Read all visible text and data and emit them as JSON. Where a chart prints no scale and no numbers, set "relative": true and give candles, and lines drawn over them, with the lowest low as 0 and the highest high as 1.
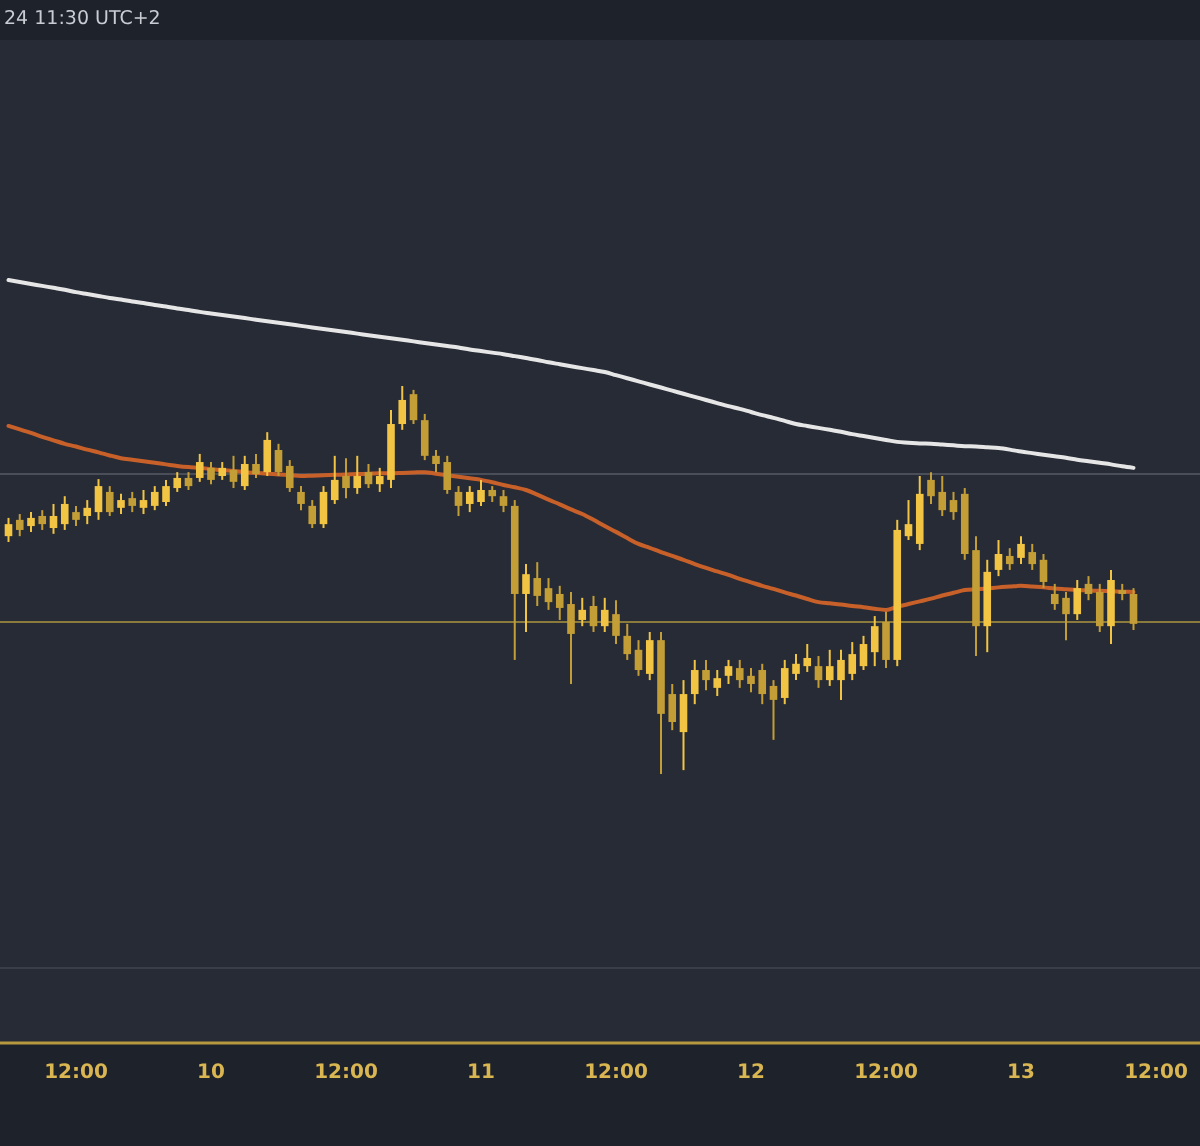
{
  "chart_data": {
    "type": "candlestick",
    "relative": true,
    "colors": [
      "#f2c443",
      "#c39e36",
      "#f2c443",
      "#c39e36",
      "#f2c443",
      "#f2c443",
      "#c39e36",
      "#f2c443",
      "#f2c443",
      "#c39e36",
      "#f2c443",
      "#c39e36",
      "#f2c443",
      "#f2c443",
      "#f2c443",
      "#f2c443",
      "#c39e36",
      "#f2c443",
      "#c39e36",
      "#f2c443",
      "#c39e36",
      "#f2c443",
      "#c39e36",
      "#f2c443",
      "#c39e36",
      "#c39e36",
      "#c39e36",
      "#c39e36",
      "#f2c443",
      "#f2c443",
      "#c39e36",
      "#f2c443",
      "#c39e36",
      "#f2c443",
      "#f2c443",
      "#f2c443",
      "#c39e36",
      "#c39e36",
      "#c39e36",
      "#c39e36",
      "#c39e36",
      "#f2c443",
      "#f2c443",
      "#c39e36",
      "#c39e36",
      "#c39e36",
      "#f2c443",
      "#c39e36",
      "#c39e36",
      "#c39e36",
      "#c39e36",
      "#f2c443",
      "#c39e36",
      "#f2c443",
      "#c39e36",
      "#c39e36",
      "#c39e36",
      "#f2c443",
      "#c39e36",
      "#c39e36",
      "#f2c443",
      "#f2c443",
      "#c39e36",
      "#f2c443",
      "#f2c443",
      "#c39e36",
      "#c39e36",
      "#c39e36",
      "#c39e36",
      "#f2c443",
      "#f2c443",
      "#f2c443",
      "#c39e36",
      "#f2c443",
      "#f2c443",
      "#f2c443",
      "#f2c443",
      "#f2c443",
      "#c39e36",
      "#f2c443",
      "#f2c443",
      "#f2c443",
      "#c39e36",
      "#c39e36",
      "#c39e36",
      "#c39e36",
      "#c39e36",
      "#f2c443",
      "#f2c443",
      "#c39e36",
      "#f2c443",
      "#c39e36",
      "#c39e36",
      "#c39e36",
      "#c39e36",
      "#f2c443",
      "#c39e36",
      "#c39e36",
      "#f2c443",
      "#c39e36",
      "#c39e36",
      null,
      null
    ],
    "annotations": [
      "24 11:30 UTC+2"
    ],
    "categories": [
      null,
      null,
      null,
      null,
      null,
      null,
      "12:00",
      null,
      null,
      null,
      null,
      null,
      null,
      null,
      null,
      null,
      null,
      null,
      "10",
      null,
      null,
      null,
      null,
      null,
      null,
      null,
      null,
      null,
      null,
      null,
      "12:00",
      null,
      null,
      null,
      null,
      null,
      null,
      null,
      null,
      null,
      null,
      null,
      "11",
      null,
      null,
      null,
      null,
      null,
      null,
      null,
      null,
      null,
      null,
      null,
      "12:00",
      null,
      null,
      null,
      null,
      null,
      null,
      null,
      null,
      null,
      null,
      null,
      "12",
      null,
      null,
      null,
      null,
      null,
      null,
      null,
      null,
      null,
      null,
      null,
      "12:00",
      null,
      null,
      null,
      null,
      null,
      null,
      null,
      null,
      null,
      null,
      null,
      "13",
      null,
      null,
      null,
      null,
      null,
      null,
      null,
      null,
      null,
      null,
      null,
      "12:00"
    ],
    "ohlc": [
      [
        0.613,
        0.66,
        0.598,
        0.644
      ],
      [
        0.655,
        0.67,
        0.613,
        0.629
      ],
      [
        0.639,
        0.675,
        0.624,
        0.66
      ],
      [
        0.665,
        0.68,
        0.629,
        0.644
      ],
      [
        0.634,
        0.696,
        0.619,
        0.665
      ],
      [
        0.644,
        0.716,
        0.629,
        0.696
      ],
      [
        0.675,
        0.691,
        0.639,
        0.655
      ],
      [
        0.665,
        0.706,
        0.644,
        0.686
      ],
      [
        0.675,
        0.76,
        0.655,
        0.742
      ],
      [
        0.727,
        0.742,
        0.665,
        0.675
      ],
      [
        0.686,
        0.722,
        0.67,
        0.706
      ],
      [
        0.711,
        0.727,
        0.675,
        0.691
      ],
      [
        0.686,
        0.732,
        0.67,
        0.706
      ],
      [
        0.691,
        0.742,
        0.68,
        0.727
      ],
      [
        0.701,
        0.758,
        0.691,
        0.742
      ],
      [
        0.737,
        0.778,
        0.727,
        0.763
      ],
      [
        0.763,
        0.778,
        0.732,
        0.742
      ],
      [
        0.763,
        0.825,
        0.753,
        0.804
      ],
      [
        0.789,
        0.804,
        0.747,
        0.758
      ],
      [
        0.768,
        0.804,
        0.758,
        0.789
      ],
      [
        0.784,
        0.82,
        0.737,
        0.753
      ],
      [
        0.742,
        0.82,
        0.732,
        0.799
      ],
      [
        0.799,
        0.825,
        0.763,
        0.773
      ],
      [
        0.778,
        0.881,
        0.768,
        0.861
      ],
      [
        0.835,
        0.851,
        0.768,
        0.778
      ],
      [
        0.794,
        0.809,
        0.727,
        0.737
      ],
      [
        0.727,
        0.742,
        0.68,
        0.696
      ],
      [
        0.691,
        0.706,
        0.634,
        0.644
      ],
      [
        0.644,
        0.742,
        0.634,
        0.727
      ],
      [
        0.706,
        0.82,
        0.696,
        0.758
      ],
      [
        0.768,
        0.814,
        0.711,
        0.737
      ],
      [
        0.737,
        0.82,
        0.722,
        0.768
      ],
      [
        0.778,
        0.799,
        0.737,
        0.747
      ],
      [
        0.747,
        0.789,
        0.727,
        0.768
      ],
      [
        0.758,
        0.938,
        0.737,
        0.902
      ],
      [
        0.902,
        1.0,
        0.887,
        0.964
      ],
      [
        0.979,
        0.99,
        0.902,
        0.912
      ],
      [
        0.912,
        0.928,
        0.809,
        0.82
      ],
      [
        0.82,
        0.835,
        0.778,
        0.799
      ],
      [
        0.804,
        0.82,
        0.722,
        0.732
      ],
      [
        0.727,
        0.742,
        0.665,
        0.691
      ],
      [
        0.696,
        0.742,
        0.675,
        0.727
      ],
      [
        0.701,
        0.758,
        0.691,
        0.732
      ],
      [
        0.732,
        0.742,
        0.701,
        0.716
      ],
      [
        0.716,
        0.732,
        0.675,
        0.691
      ],
      [
        0.691,
        0.706,
        0.294,
        0.464
      ],
      [
        0.464,
        0.541,
        0.366,
        0.515
      ],
      [
        0.505,
        0.546,
        0.433,
        0.459
      ],
      [
        0.479,
        0.505,
        0.423,
        0.443
      ],
      [
        0.464,
        0.485,
        0.397,
        0.428
      ],
      [
        0.438,
        0.469,
        0.232,
        0.361
      ],
      [
        0.397,
        0.454,
        0.381,
        0.423
      ],
      [
        0.433,
        0.459,
        0.366,
        0.381
      ],
      [
        0.381,
        0.454,
        0.366,
        0.423
      ],
      [
        0.412,
        0.448,
        0.335,
        0.356
      ],
      [
        0.356,
        0.387,
        0.294,
        0.309
      ],
      [
        0.32,
        0.345,
        0.253,
        0.268
      ],
      [
        0.258,
        0.366,
        0.242,
        0.345
      ],
      [
        0.345,
        0.366,
        0,
        0.155
      ],
      [
        0.206,
        0.232,
        0.113,
        0.134
      ],
      [
        0.108,
        0.242,
        0.01,
        0.206
      ],
      [
        0.206,
        0.294,
        0.18,
        0.268
      ],
      [
        0.268,
        0.294,
        0.216,
        0.242
      ],
      [
        0.222,
        0.268,
        0.201,
        0.247
      ],
      [
        0.253,
        0.294,
        0.232,
        0.278
      ],
      [
        0.273,
        0.294,
        0.222,
        0.242
      ],
      [
        0.253,
        0.273,
        0.211,
        0.232
      ],
      [
        0.268,
        0.284,
        0.18,
        0.206
      ],
      [
        0.227,
        0.242,
        0.088,
        0.191
      ],
      [
        0.196,
        0.294,
        0.18,
        0.273
      ],
      [
        0.258,
        0.309,
        0.242,
        0.284
      ],
      [
        0.278,
        0.335,
        0.263,
        0.299
      ],
      [
        0.278,
        0.304,
        0.222,
        0.242
      ],
      [
        0.242,
        0.32,
        0.227,
        0.278
      ],
      [
        0.242,
        0.32,
        0.191,
        0.294
      ],
      [
        0.258,
        0.34,
        0.242,
        0.309
      ],
      [
        0.278,
        0.356,
        0.268,
        0.335
      ],
      [
        0.314,
        0.407,
        0.278,
        0.381
      ],
      [
        0.392,
        0.418,
        0.273,
        0.294
      ],
      [
        0.294,
        0.655,
        0.278,
        0.629
      ],
      [
        0.613,
        0.706,
        0.603,
        0.644
      ],
      [
        0.593,
        0.768,
        0.577,
        0.722
      ],
      [
        0.758,
        0.778,
        0.696,
        0.716
      ],
      [
        0.727,
        0.768,
        0.665,
        0.68
      ],
      [
        0.706,
        0.727,
        0.655,
        0.675
      ],
      [
        0.722,
        0.737,
        0.552,
        0.567
      ],
      [
        0.577,
        0.613,
        0.304,
        0.381
      ],
      [
        0.381,
        0.552,
        0.314,
        0.521
      ],
      [
        0.526,
        0.603,
        0.51,
        0.567
      ],
      [
        0.562,
        0.582,
        0.526,
        0.541
      ],
      [
        0.557,
        0.613,
        0.541,
        0.593
      ],
      [
        0.572,
        0.593,
        0.526,
        0.541
      ],
      [
        0.552,
        0.567,
        0.479,
        0.495
      ],
      [
        0.464,
        0.49,
        0.423,
        0.438
      ],
      [
        0.454,
        0.469,
        0.345,
        0.412
      ],
      [
        0.412,
        0.5,
        0.397,
        0.479
      ],
      [
        0.49,
        0.51,
        0.448,
        0.464
      ],
      [
        0.469,
        0.49,
        0.366,
        0.381
      ],
      [
        0.381,
        0.526,
        0.335,
        0.5
      ],
      [
        0.474,
        0.49,
        0.448,
        0.464
      ],
      [
        0.464,
        0.479,
        0.371,
        0.387
      ],
      null,
      null
    ],
    "series": [
      {
        "type": "line",
        "color": "#e6e6e6",
        "values": [
          1.273,
          1.268,
          1.263,
          1.258,
          1.253,
          1.248,
          1.242,
          1.237,
          1.232,
          1.227,
          1.223,
          1.218,
          1.214,
          1.209,
          1.205,
          1.2,
          1.196,
          1.191,
          1.187,
          1.183,
          1.179,
          1.175,
          1.171,
          1.167,
          1.163,
          1.159,
          1.155,
          1.151,
          1.147,
          1.143,
          1.139,
          1.135,
          1.131,
          1.127,
          1.123,
          1.119,
          1.115,
          1.111,
          1.107,
          1.103,
          1.099,
          1.094,
          1.09,
          1.086,
          1.082,
          1.077,
          1.072,
          1.067,
          1.061,
          1.056,
          1.051,
          1.046,
          1.041,
          1.036,
          1.028,
          1.02,
          1.012,
          1.004,
          0.996,
          0.988,
          0.98,
          0.972,
          0.964,
          0.956,
          0.948,
          0.941,
          0.933,
          0.925,
          0.918,
          0.91,
          0.902,
          0.897,
          0.892,
          0.887,
          0.882,
          0.876,
          0.871,
          0.866,
          0.861,
          0.856,
          0.854,
          0.852,
          0.851,
          0.849,
          0.847,
          0.845,
          0.844,
          0.842,
          0.84,
          0.836,
          0.831,
          0.827,
          0.823,
          0.819,
          0.815,
          0.81,
          0.806,
          0.802,
          0.798,
          0.793,
          0.789,
          null,
          null
        ]
      },
      {
        "type": "line",
        "color": "#c8602a",
        "values": [
          0.897,
          0.888,
          0.879,
          0.869,
          0.86,
          0.851,
          0.844,
          0.836,
          0.829,
          0.821,
          0.814,
          0.81,
          0.806,
          0.802,
          0.798,
          0.794,
          0.791,
          0.789,
          0.786,
          0.783,
          0.781,
          0.778,
          0.776,
          0.774,
          0.772,
          0.77,
          0.768,
          0.769,
          0.77,
          0.771,
          0.772,
          0.773,
          0.774,
          0.775,
          0.775,
          0.776,
          0.777,
          0.778,
          0.774,
          0.77,
          0.766,
          0.762,
          0.758,
          0.752,
          0.745,
          0.739,
          0.732,
          0.72,
          0.707,
          0.695,
          0.682,
          0.67,
          0.655,
          0.639,
          0.624,
          0.608,
          0.593,
          0.583,
          0.572,
          0.562,
          0.552,
          0.541,
          0.531,
          0.522,
          0.513,
          0.503,
          0.494,
          0.485,
          0.477,
          0.468,
          0.46,
          0.451,
          0.443,
          0.44,
          0.437,
          0.433,
          0.43,
          0.426,
          0.423,
          0.431,
          0.438,
          0.445,
          0.452,
          0.46,
          0.467,
          0.474,
          0.476,
          0.478,
          0.481,
          0.483,
          0.485,
          0.483,
          0.481,
          0.478,
          0.476,
          0.474,
          0.473,
          0.472,
          0.471,
          0.47,
          0.469,
          null,
          null
        ]
      }
    ],
    "ref_lines": [
      {
        "axis": "y",
        "value": 0.392,
        "color": "#8a7a3c"
      },
      {
        "axis": "y",
        "value": 0.773,
        "color": "#4a4e58"
      },
      {
        "axis": "y",
        "value": -0.5,
        "color": "#3a3e48"
      }
    ],
    "grid": false
  }
}
